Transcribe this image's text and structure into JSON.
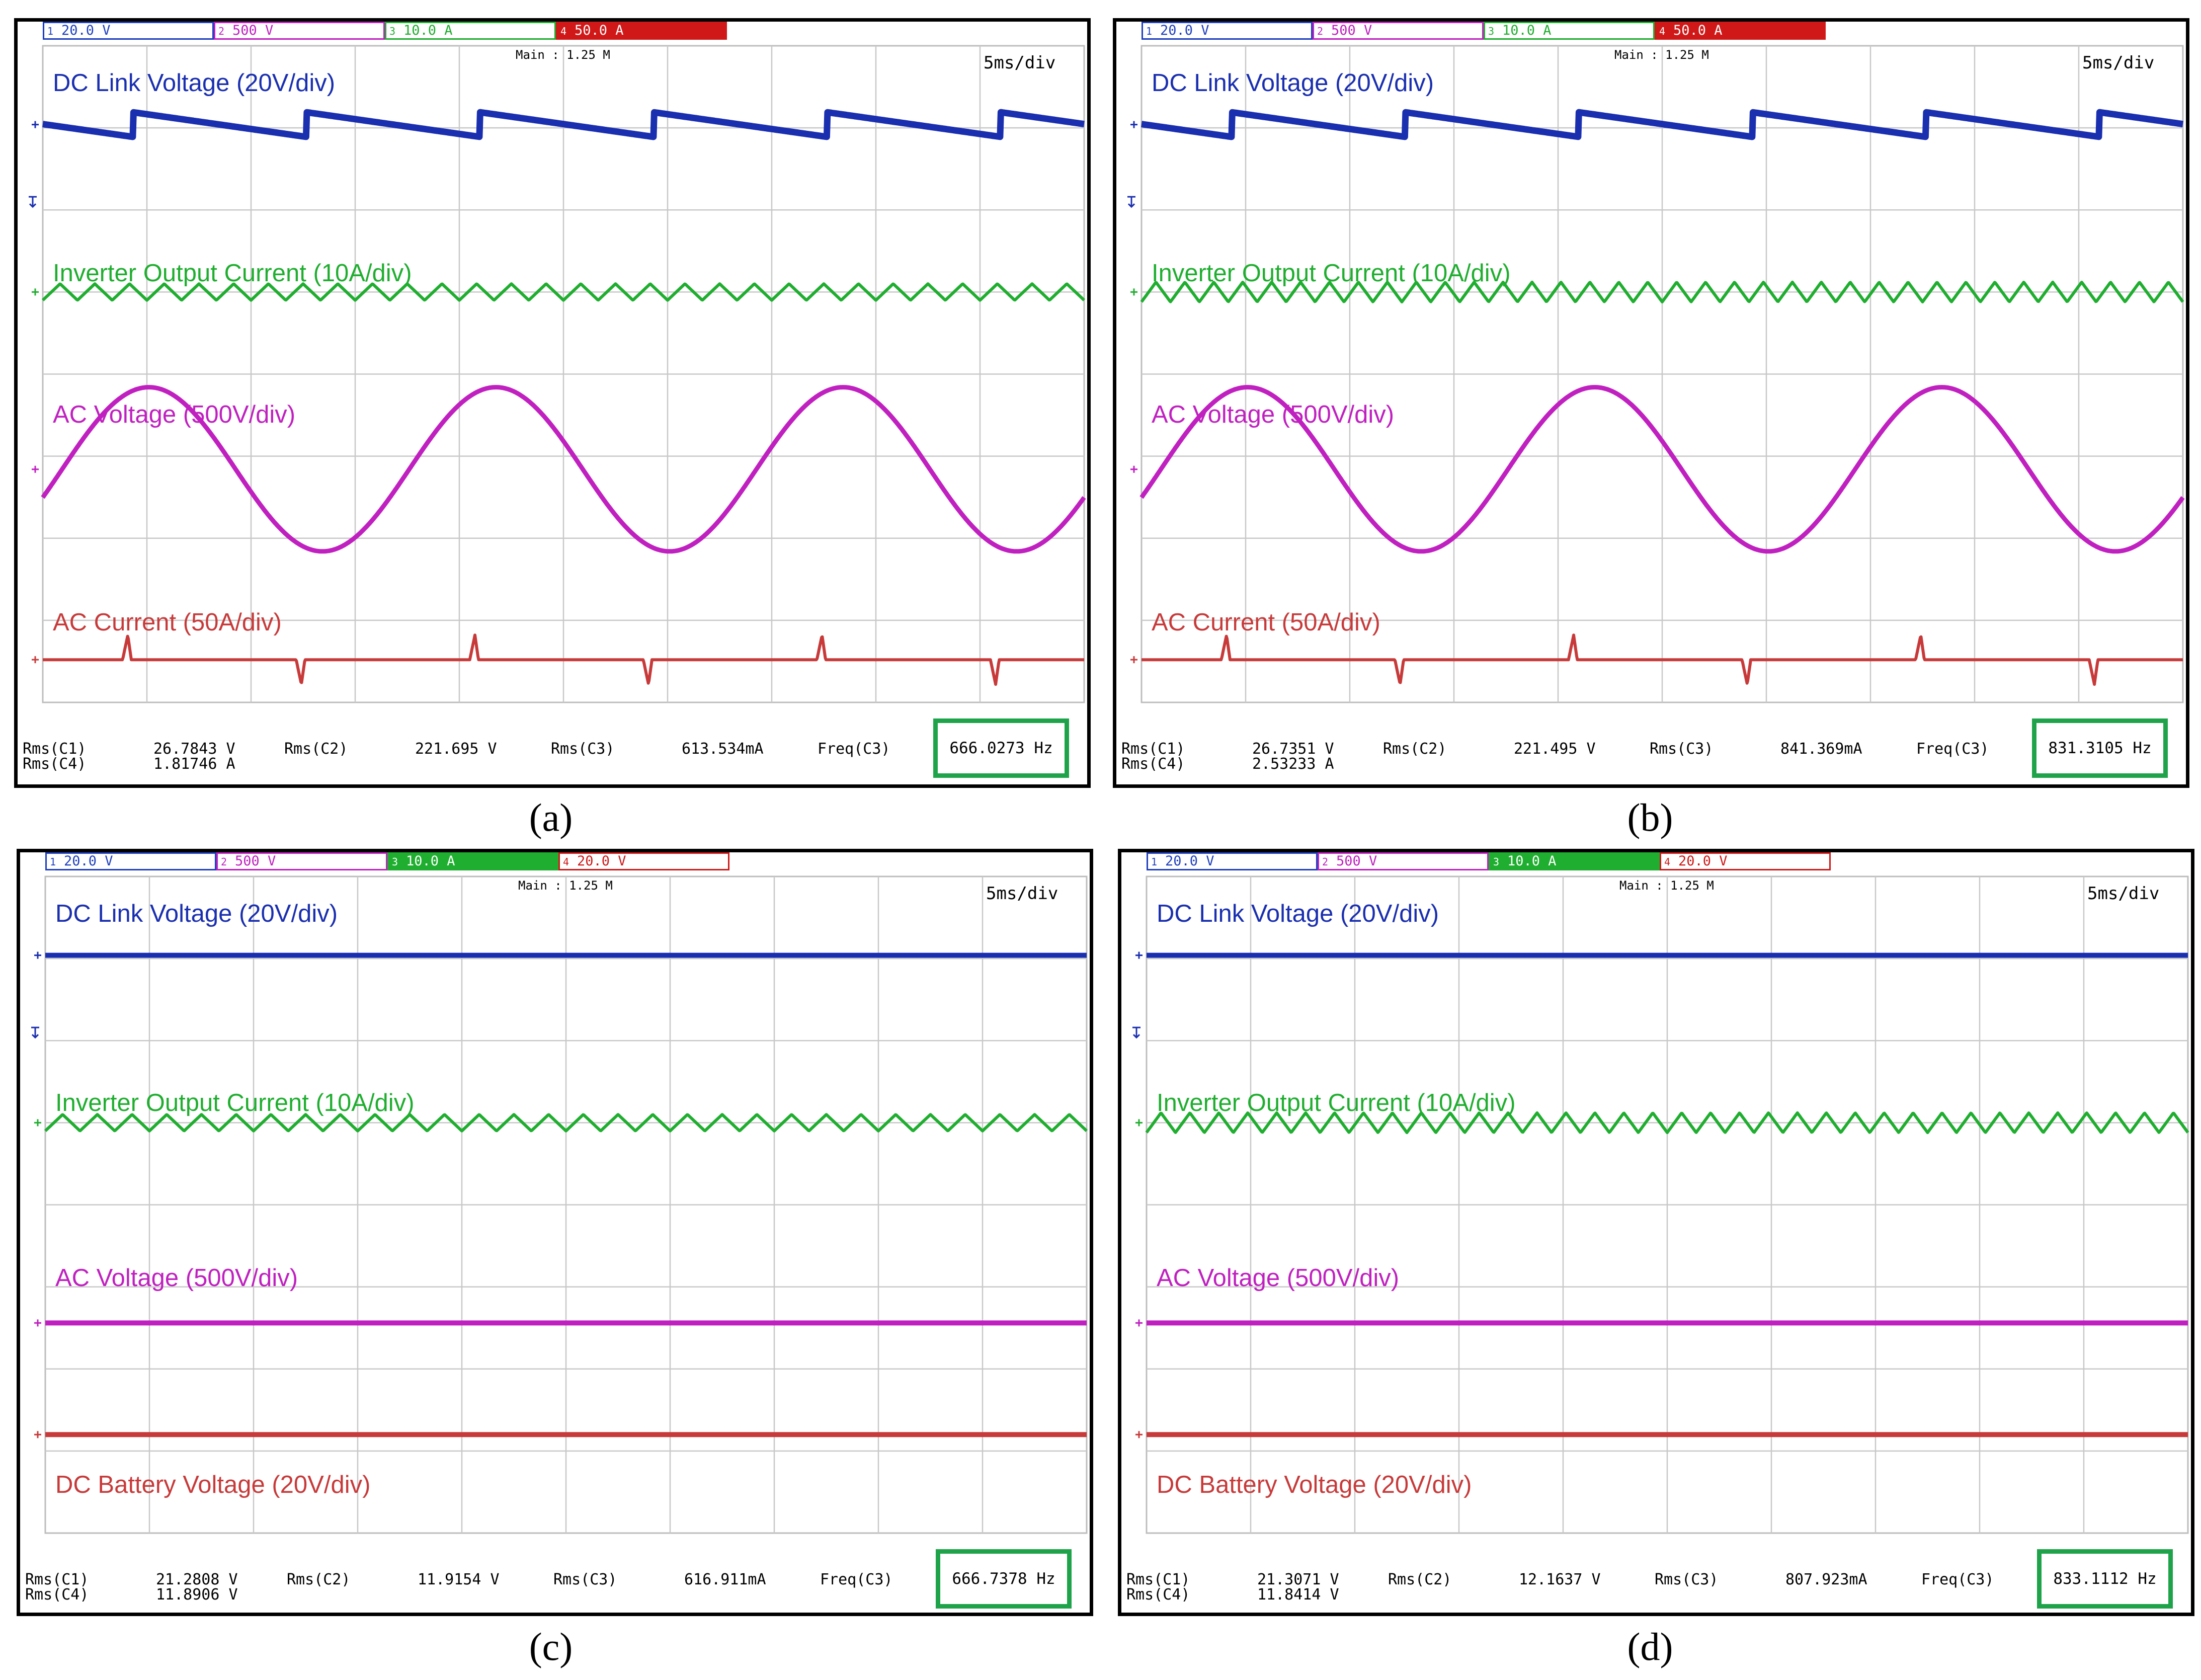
{
  "chart_data": [
    {
      "panel": "a",
      "type": "line",
      "caption": "(a)",
      "timebase": "5ms/div",
      "main_info": "Main : 1.25 M",
      "channels": [
        {
          "id": "1",
          "label": "20.0 V",
          "color": "#1f3fbf"
        },
        {
          "id": "2",
          "label": "500 V",
          "color": "#c020c0"
        },
        {
          "id": "3",
          "label": "10.0 A",
          "color": "#1fae2f"
        },
        {
          "id": "4",
          "label": "50.0 A",
          "color": "#d01818"
        }
      ],
      "traces": [
        {
          "name": "DC Link Voltage (20V/div)",
          "color": "#1a2fb0",
          "waveform": "sawtooth",
          "cycles": 6,
          "amplitude_div": 0.3
        },
        {
          "name": "Inverter Output Current (10A/div)",
          "color": "#1fae2f",
          "waveform": "triangle",
          "cycles": 30,
          "amplitude_div": 0.1
        },
        {
          "name": "AC Voltage (500V/div)",
          "color": "#c020c0",
          "waveform": "sine",
          "cycles": 3,
          "amplitude_div": 1.0
        },
        {
          "name": "AC Current (50A/div)",
          "color": "#c83a3a",
          "waveform": "spikes",
          "cycles": 6,
          "amplitude_div": 0.3
        }
      ],
      "measurements": {
        "row1": [
          "Rms(C1)",
          "26.7843 V",
          "Rms(C2)",
          "221.695 V",
          "Rms(C3)",
          "613.534mA",
          "Freq(C3)"
        ],
        "row2": [
          "Rms(C4)",
          "1.81746 A"
        ],
        "freq": "666.0273 Hz"
      }
    },
    {
      "panel": "b",
      "type": "line",
      "caption": "(b)",
      "timebase": "5ms/div",
      "main_info": "Main : 1.25 M",
      "channels": [
        {
          "id": "1",
          "label": "20.0 V",
          "color": "#1f3fbf"
        },
        {
          "id": "2",
          "label": "500 V",
          "color": "#c020c0"
        },
        {
          "id": "3",
          "label": "10.0 A",
          "color": "#1fae2f"
        },
        {
          "id": "4",
          "label": "50.0 A",
          "color": "#d01818"
        }
      ],
      "traces": [
        {
          "name": "DC Link Voltage (20V/div)",
          "color": "#1a2fb0",
          "waveform": "sawtooth",
          "cycles": 6,
          "amplitude_div": 0.3
        },
        {
          "name": "Inverter Output Current (10A/div)",
          "color": "#1fae2f",
          "waveform": "triangle",
          "cycles": 36,
          "amplitude_div": 0.12
        },
        {
          "name": "AC Voltage (500V/div)",
          "color": "#c020c0",
          "waveform": "sine",
          "cycles": 3,
          "amplitude_div": 1.0
        },
        {
          "name": "AC Current (50A/div)",
          "color": "#c83a3a",
          "waveform": "spikes",
          "cycles": 6,
          "amplitude_div": 0.3
        }
      ],
      "measurements": {
        "row1": [
          "Rms(C1)",
          "26.7351 V",
          "Rms(C2)",
          "221.495 V",
          "Rms(C3)",
          "841.369mA",
          "Freq(C3)"
        ],
        "row2": [
          "Rms(C4)",
          "2.53233 A"
        ],
        "freq": "831.3105 Hz"
      }
    },
    {
      "panel": "c",
      "type": "line",
      "caption": "(c)",
      "timebase": "5ms/div",
      "main_info": "Main : 1.25 M",
      "channels": [
        {
          "id": "1",
          "label": "20.0 V",
          "color": "#1f3fbf"
        },
        {
          "id": "2",
          "label": "500 V",
          "color": "#c020c0"
        },
        {
          "id": "3",
          "label": "10.0 A",
          "color": "#1fae2f"
        },
        {
          "id": "4",
          "label": "20.0 V",
          "color": "#d01818"
        }
      ],
      "traces": [
        {
          "name": "DC Link Voltage (20V/div)",
          "color": "#1a2fb0",
          "waveform": "flat",
          "cycles": 0,
          "amplitude_div": 0
        },
        {
          "name": "Inverter Output Current (10A/div)",
          "color": "#1fae2f",
          "waveform": "triangle",
          "cycles": 30,
          "amplitude_div": 0.1
        },
        {
          "name": "AC Voltage (500V/div)",
          "color": "#c020c0",
          "waveform": "flat",
          "cycles": 0,
          "amplitude_div": 0
        },
        {
          "name": "DC Battery Voltage (20V/div)",
          "color": "#c83a3a",
          "waveform": "flat",
          "cycles": 0,
          "amplitude_div": 0
        }
      ],
      "measurements": {
        "row1": [
          "Rms(C1)",
          "21.2808 V",
          "Rms(C2)",
          "11.9154 V",
          "Rms(C3)",
          "616.911mA",
          "Freq(C3)"
        ],
        "row2": [
          "Rms(C4)",
          "11.8906 V"
        ],
        "freq": "666.7378 Hz"
      }
    },
    {
      "panel": "d",
      "type": "line",
      "caption": "(d)",
      "timebase": "5ms/div",
      "main_info": "Main : 1.25 M",
      "channels": [
        {
          "id": "1",
          "label": "20.0 V",
          "color": "#1f3fbf"
        },
        {
          "id": "2",
          "label": "500 V",
          "color": "#c020c0"
        },
        {
          "id": "3",
          "label": "10.0 A",
          "color": "#1fae2f"
        },
        {
          "id": "4",
          "label": "20.0 V",
          "color": "#d01818"
        }
      ],
      "traces": [
        {
          "name": "DC Link Voltage (20V/div)",
          "color": "#1a2fb0",
          "waveform": "flat",
          "cycles": 0,
          "amplitude_div": 0
        },
        {
          "name": "Inverter Output Current (10A/div)",
          "color": "#1fae2f",
          "waveform": "triangle",
          "cycles": 36,
          "amplitude_div": 0.12
        },
        {
          "name": "AC Voltage (500V/div)",
          "color": "#c020c0",
          "waveform": "flat",
          "cycles": 0,
          "amplitude_div": 0
        },
        {
          "name": "DC Battery Voltage (20V/div)",
          "color": "#c83a3a",
          "waveform": "flat",
          "cycles": 0,
          "amplitude_div": 0
        }
      ],
      "measurements": {
        "row1": [
          "Rms(C1)",
          "21.3071 V",
          "Rms(C2)",
          "12.1637 V",
          "Rms(C3)",
          "807.923mA",
          "Freq(C3)"
        ],
        "row2": [
          "Rms(C4)",
          "11.8414 V"
        ],
        "freq": "833.1112 Hz"
      }
    }
  ]
}
